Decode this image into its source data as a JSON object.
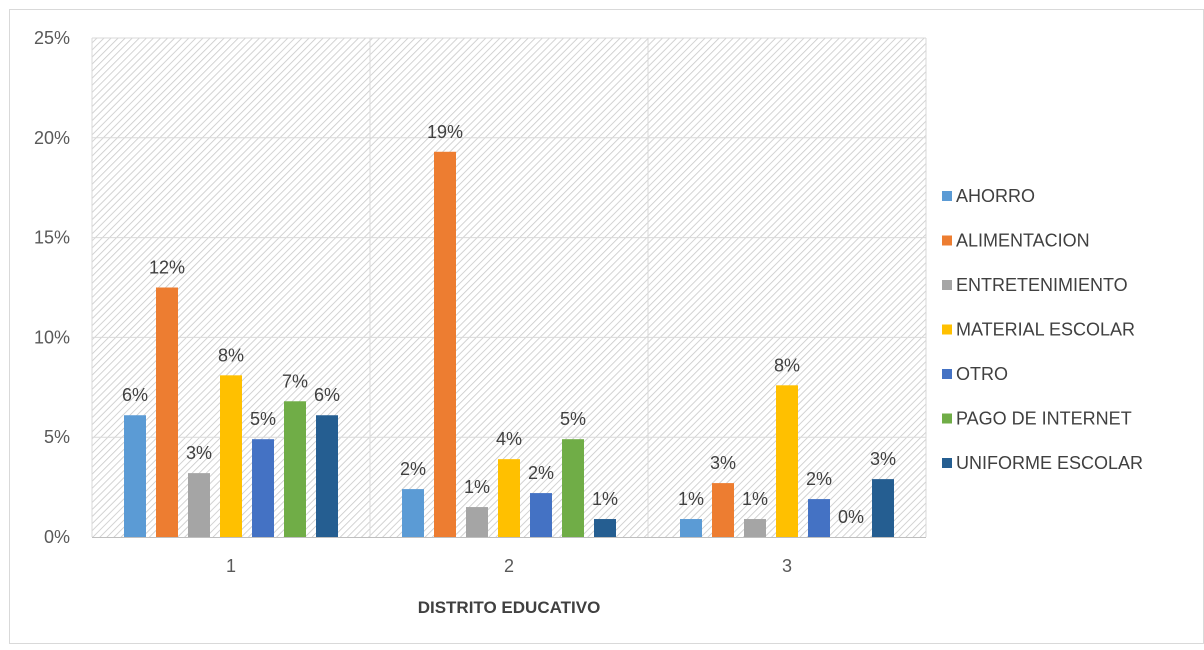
{
  "chart_data": {
    "type": "bar",
    "title": "",
    "xlabel": "DISTRITO EDUCATIVO",
    "ylabel": "",
    "categories": [
      "1",
      "2",
      "3"
    ],
    "ylim": [
      0,
      25
    ],
    "yticks": [
      0,
      5,
      10,
      15,
      20,
      25
    ],
    "ytick_labels": [
      "0%",
      "5%",
      "10%",
      "15%",
      "20%",
      "25%"
    ],
    "grid": true,
    "legend_position": "right",
    "series": [
      {
        "name": "AHORRO",
        "color": "#5B9BD5",
        "values": [
          6.1,
          2.4,
          0.9
        ],
        "labels": [
          "6%",
          "2%",
          "1%"
        ]
      },
      {
        "name": "ALIMENTACION",
        "color": "#ED7D31",
        "values": [
          12.5,
          19.3,
          2.7
        ],
        "labels": [
          "12%",
          "19%",
          "3%"
        ]
      },
      {
        "name": "ENTRETENIMIENTO",
        "color": "#A5A5A5",
        "values": [
          3.2,
          1.5,
          0.9
        ],
        "labels": [
          "3%",
          "1%",
          "1%"
        ]
      },
      {
        "name": "MATERIAL ESCOLAR",
        "color": "#FFC000",
        "values": [
          8.1,
          3.9,
          7.6
        ],
        "labels": [
          "8%",
          "4%",
          "8%"
        ]
      },
      {
        "name": "OTRO",
        "color": "#4472C4",
        "values": [
          4.9,
          2.2,
          1.9
        ],
        "labels": [
          "5%",
          "2%",
          "2%"
        ]
      },
      {
        "name": "PAGO DE INTERNET",
        "color": "#70AD47",
        "values": [
          6.8,
          4.9,
          0
        ],
        "labels": [
          "7%",
          "5%",
          "0%"
        ]
      },
      {
        "name": "UNIFORME ESCOLAR",
        "color": "#255E91",
        "values": [
          6.1,
          0.9,
          2.9
        ],
        "labels": [
          "6%",
          "1%",
          "3%"
        ]
      }
    ]
  }
}
